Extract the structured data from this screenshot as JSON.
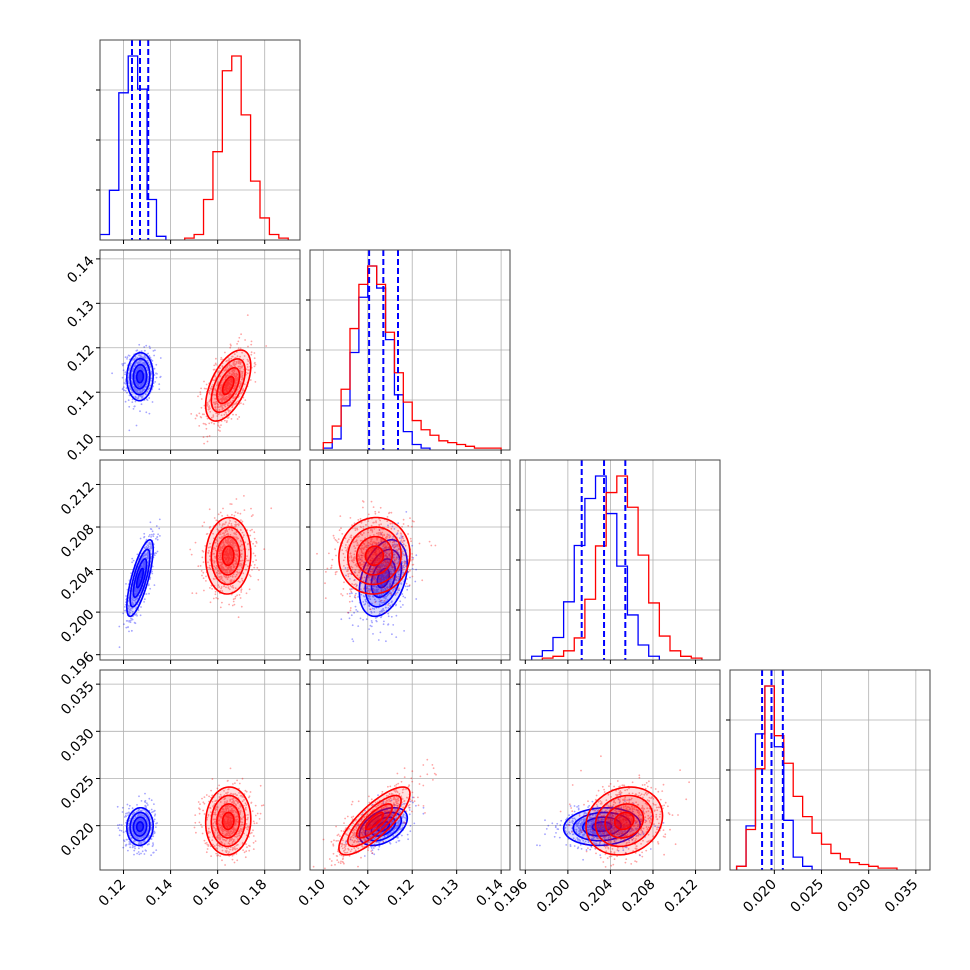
{
  "colors": {
    "series_a": "#0000ff",
    "series_b": "#ff0000",
    "grid": "#b0b0b0",
    "frame": "#444444"
  },
  "chart_data": {
    "type": "corner",
    "parameter_count": 4,
    "grid": true,
    "quantile_lines": {
      "style": "dashed",
      "color": "#0000ff",
      "applies_to": "series_a"
    },
    "axes": [
      {
        "range": [
          0.11,
          0.195
        ],
        "ticks": [
          0.12,
          0.14,
          0.16,
          0.18
        ],
        "tick_labels": [
          "0.12",
          "0.14",
          "0.16",
          "0.18"
        ]
      },
      {
        "range": [
          0.097,
          0.142
        ],
        "ticks": [
          0.1,
          0.11,
          0.12,
          0.13,
          0.14
        ],
        "tick_labels": [
          "0.10",
          "0.11",
          "0.12",
          "0.13",
          "0.14"
        ]
      },
      {
        "range": [
          0.1955,
          0.2143
        ],
        "ticks": [
          0.196,
          0.2,
          0.204,
          0.208,
          0.212
        ],
        "tick_labels": [
          "0.196",
          "0.200",
          "0.204",
          "0.208",
          "0.212"
        ]
      },
      {
        "range": [
          0.0153,
          0.0365
        ],
        "ticks": [
          0.02,
          0.025,
          0.03,
          0.035
        ],
        "tick_labels": [
          "0.020",
          "0.025",
          "0.030",
          "0.035"
        ]
      }
    ],
    "series": [
      {
        "color": "#0000ff",
        "mean": [
          0.127,
          0.1135,
          0.2032,
          0.0199
        ],
        "sd": [
          0.0028,
          0.0027,
          0.0018,
          0.001
        ],
        "corr": [
          [
            1,
            0.05,
            0.75,
            0.05
          ],
          [
            0.05,
            1,
            0.35,
            0.45
          ],
          [
            0.75,
            0.35,
            1,
            0.1
          ],
          [
            0.05,
            0.45,
            0.1,
            1
          ]
        ],
        "quantiles": [
          [
            0.1236,
            0.127,
            0.1305
          ],
          [
            0.1103,
            0.1135,
            0.1168
          ],
          [
            0.2013,
            0.2034,
            0.2054
          ],
          [
            0.0187,
            0.0197,
            0.0209
          ]
        ],
        "marginals": [
          {
            "edges": [
              0.11,
              0.114,
              0.118,
              0.122,
              0.126,
              0.13,
              0.134,
              0.138
            ],
            "counts": [
              0.03,
              0.27,
              0.8,
              1.0,
              0.82,
              0.22,
              0.02
            ]
          },
          {
            "edges": [
              0.1,
              0.102,
              0.104,
              0.106,
              0.108,
              0.11,
              0.112,
              0.114,
              0.116,
              0.118,
              0.12,
              0.122,
              0.124
            ],
            "counts": [
              0.01,
              0.06,
              0.24,
              0.53,
              0.83,
              1.0,
              0.88,
              0.6,
              0.3,
              0.1,
              0.03,
              0.01
            ]
          },
          {
            "edges": [
              0.1966,
              0.1976,
              0.1986,
              0.1996,
              0.2006,
              0.2016,
              0.2026,
              0.2036,
              0.2046,
              0.2056,
              0.2066,
              0.2076,
              0.2086
            ],
            "counts": [
              0.02,
              0.05,
              0.12,
              0.31,
              0.61,
              0.86,
              0.98,
              0.78,
              0.5,
              0.24,
              0.08,
              0.02
            ]
          },
          {
            "edges": [
              0.016,
              0.017,
              0.018,
              0.019,
              0.02,
              0.021,
              0.022,
              0.023,
              0.024,
              0.025
            ],
            "counts": [
              0.02,
              0.24,
              0.74,
              1.0,
              0.67,
              0.27,
              0.07,
              0.02,
              0.0
            ]
          }
        ]
      },
      {
        "color": "#ff0000",
        "mean": [
          0.1645,
          0.1115,
          0.2053,
          0.0205
        ],
        "sd": [
          0.0048,
          0.004,
          0.0018,
          0.0018
        ],
        "corr": [
          [
            1,
            0.55,
            0.05,
            0.05
          ],
          [
            0.55,
            1,
            0.05,
            0.8
          ],
          [
            0.05,
            0.05,
            1,
            0.15
          ],
          [
            0.05,
            0.8,
            0.15,
            1
          ]
        ],
        "marginals": [
          {
            "edges": [
              0.146,
              0.15,
              0.154,
              0.158,
              0.162,
              0.166,
              0.17,
              0.174,
              0.178,
              0.182,
              0.186,
              0.19
            ],
            "counts": [
              0.01,
              0.03,
              0.22,
              0.48,
              0.92,
              1.0,
              0.68,
              0.32,
              0.12,
              0.03,
              0.01
            ]
          },
          {
            "edges": [
              0.1,
              0.102,
              0.104,
              0.106,
              0.108,
              0.11,
              0.112,
              0.114,
              0.116,
              0.118,
              0.12,
              0.122,
              0.124,
              0.126,
              0.128,
              0.13,
              0.132,
              0.134,
              0.136,
              0.138,
              0.14
            ],
            "counts": [
              0.04,
              0.13,
              0.33,
              0.66,
              0.9,
              1.0,
              0.9,
              0.64,
              0.42,
              0.26,
              0.16,
              0.11,
              0.08,
              0.05,
              0.04,
              0.03,
              0.02,
              0.01,
              0.01,
              0.01
            ]
          },
          {
            "edges": [
              0.1976,
              0.1986,
              0.1996,
              0.2006,
              0.2016,
              0.2026,
              0.2036,
              0.2046,
              0.2056,
              0.2066,
              0.2076,
              0.2086,
              0.2096,
              0.2106,
              0.2116,
              0.2126
            ],
            "counts": [
              0.01,
              0.02,
              0.05,
              0.12,
              0.33,
              0.62,
              0.91,
              1.0,
              0.83,
              0.57,
              0.31,
              0.13,
              0.05,
              0.02,
              0.01
            ]
          },
          {
            "edges": [
              0.016,
              0.017,
              0.018,
              0.019,
              0.02,
              0.021,
              0.022,
              0.023,
              0.024,
              0.025,
              0.026,
              0.027,
              0.028,
              0.029,
              0.03,
              0.031,
              0.032,
              0.033
            ],
            "counts": [
              0.02,
              0.22,
              0.55,
              1.0,
              0.73,
              0.58,
              0.4,
              0.29,
              0.2,
              0.14,
              0.09,
              0.06,
              0.04,
              0.03,
              0.02,
              0.01,
              0.01
            ]
          }
        ]
      }
    ]
  }
}
